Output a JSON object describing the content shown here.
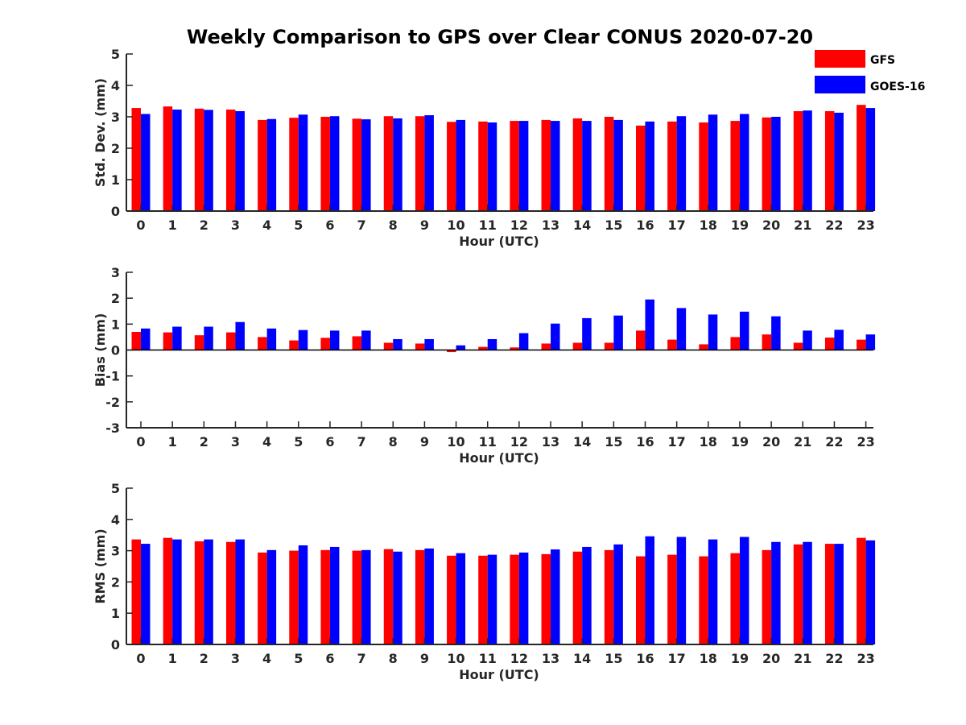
{
  "title": "Weekly Comparison to GPS over Clear CONUS 2020-07-20",
  "colors": {
    "GFS": "#ff0000",
    "GOES-16": "#0000ff"
  },
  "chart_data": [
    {
      "type": "bar",
      "xlabel": "Hour (UTC)",
      "ylabel": "Std. Dev. (mm)",
      "ylim": [
        0,
        5
      ],
      "yticks": [
        "0",
        "1",
        "2",
        "3",
        "4",
        "5"
      ],
      "categories": [
        "0",
        "1",
        "2",
        "3",
        "4",
        "5",
        "6",
        "7",
        "8",
        "9",
        "10",
        "11",
        "12",
        "13",
        "14",
        "15",
        "16",
        "17",
        "18",
        "19",
        "20",
        "21",
        "22",
        "23"
      ],
      "series": [
        {
          "name": "GFS",
          "values": [
            3.28,
            3.33,
            3.26,
            3.23,
            2.9,
            2.97,
            3.0,
            2.94,
            3.02,
            3.02,
            2.84,
            2.85,
            2.87,
            2.9,
            2.95,
            3.0,
            2.72,
            2.85,
            2.82,
            2.87,
            2.98,
            3.18,
            3.18,
            3.38
          ]
        },
        {
          "name": "GOES-16",
          "values": [
            3.09,
            3.23,
            3.22,
            3.18,
            2.93,
            3.07,
            3.02,
            2.92,
            2.95,
            3.05,
            2.9,
            2.82,
            2.87,
            2.87,
            2.87,
            2.9,
            2.85,
            3.02,
            3.07,
            3.09,
            3.0,
            3.2,
            3.13,
            3.28
          ]
        }
      ],
      "legend": "top-right",
      "grid": false
    },
    {
      "type": "bar",
      "xlabel": "Hour (UTC)",
      "ylabel": "Bias (mm)",
      "ylim": [
        -3,
        3
      ],
      "yticks": [
        "-3",
        "-2",
        "-1",
        "0",
        "1",
        "2",
        "3"
      ],
      "categories": [
        "0",
        "1",
        "2",
        "3",
        "4",
        "5",
        "6",
        "7",
        "8",
        "9",
        "10",
        "11",
        "12",
        "13",
        "14",
        "15",
        "16",
        "17",
        "18",
        "19",
        "20",
        "21",
        "22",
        "23"
      ],
      "series": [
        {
          "name": "GFS",
          "values": [
            0.7,
            0.68,
            0.57,
            0.68,
            0.5,
            0.37,
            0.47,
            0.53,
            0.28,
            0.25,
            -0.08,
            0.12,
            0.1,
            0.25,
            0.28,
            0.28,
            0.75,
            0.4,
            0.22,
            0.5,
            0.6,
            0.28,
            0.48,
            0.4
          ]
        },
        {
          "name": "GOES-16",
          "values": [
            0.83,
            0.9,
            0.9,
            1.08,
            0.83,
            0.77,
            0.75,
            0.75,
            0.42,
            0.42,
            0.18,
            0.42,
            0.65,
            1.02,
            1.23,
            1.33,
            1.95,
            1.62,
            1.37,
            1.48,
            1.3,
            0.75,
            0.78,
            0.6
          ]
        }
      ],
      "grid": false
    },
    {
      "type": "bar",
      "xlabel": "Hour (UTC)",
      "ylabel": "RMS (mm)",
      "ylim": [
        0,
        5
      ],
      "yticks": [
        "0",
        "1",
        "2",
        "3",
        "4",
        "5"
      ],
      "categories": [
        "0",
        "1",
        "2",
        "3",
        "4",
        "5",
        "6",
        "7",
        "8",
        "9",
        "10",
        "11",
        "12",
        "13",
        "14",
        "15",
        "16",
        "17",
        "18",
        "19",
        "20",
        "21",
        "22",
        "23"
      ],
      "series": [
        {
          "name": "GFS",
          "values": [
            3.36,
            3.41,
            3.3,
            3.28,
            2.94,
            3.0,
            3.02,
            3.0,
            3.05,
            3.02,
            2.84,
            2.84,
            2.87,
            2.89,
            2.97,
            3.02,
            2.82,
            2.87,
            2.82,
            2.92,
            3.02,
            3.2,
            3.22,
            3.41
          ]
        },
        {
          "name": "GOES-16",
          "values": [
            3.22,
            3.36,
            3.36,
            3.36,
            3.02,
            3.17,
            3.12,
            3.02,
            2.97,
            3.07,
            2.92,
            2.87,
            2.94,
            3.04,
            3.12,
            3.2,
            3.46,
            3.44,
            3.36,
            3.44,
            3.28,
            3.28,
            3.22,
            3.33
          ]
        }
      ],
      "grid": false
    }
  ]
}
